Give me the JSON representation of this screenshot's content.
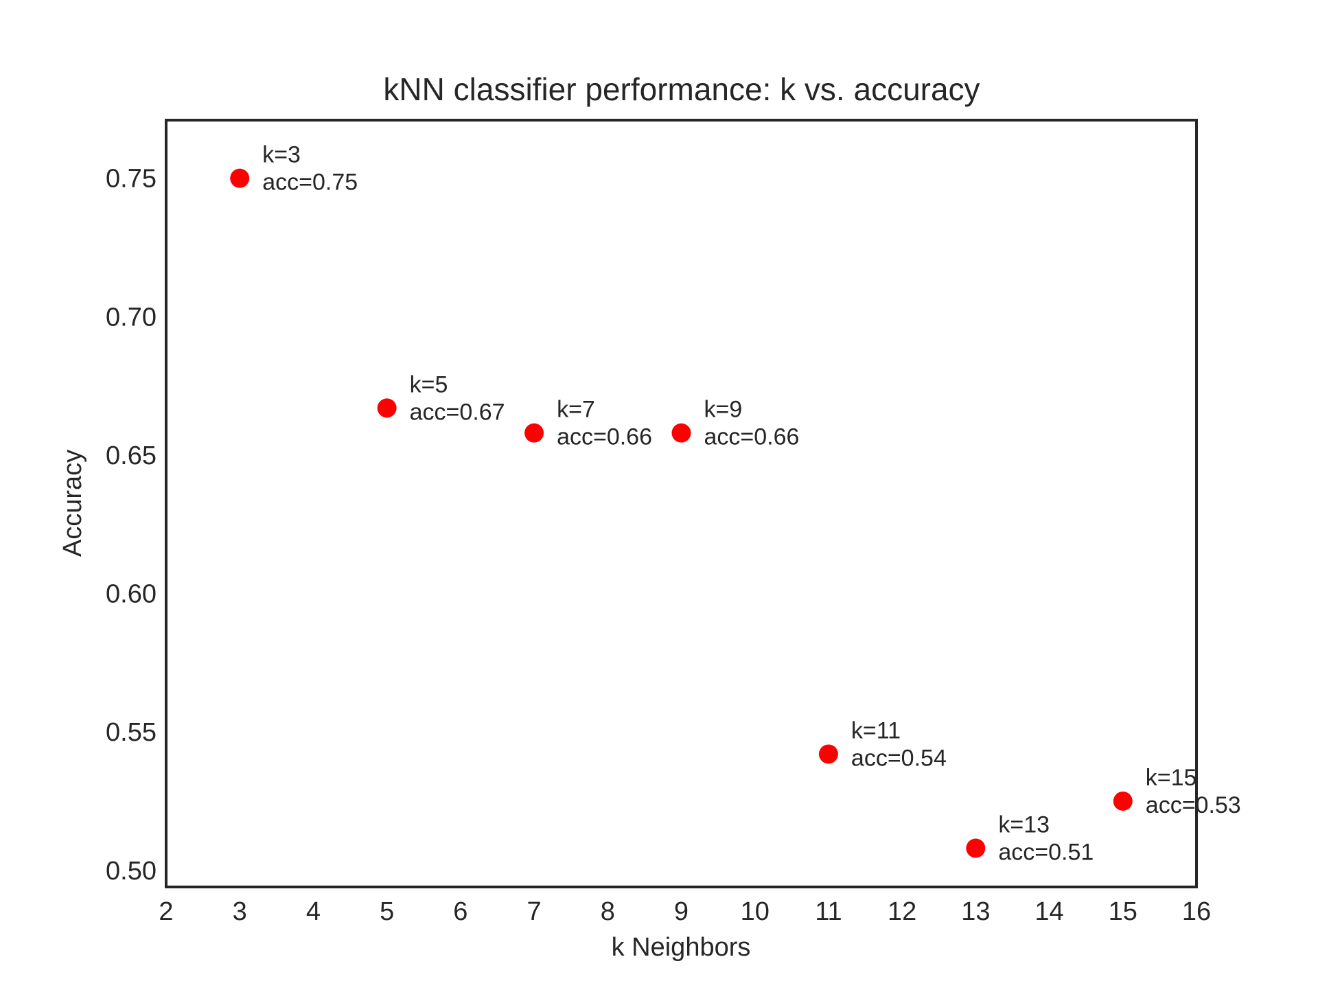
{
  "chart_data": {
    "type": "scatter",
    "title": "kNN classifier performance: k vs. accuracy",
    "xlabel": "k Neighbors",
    "ylabel": "Accuracy",
    "xlim": [
      2,
      16
    ],
    "ylim": [
      0.494,
      0.771
    ],
    "grid": false,
    "legend": "none",
    "xticks": [
      2,
      3,
      4,
      5,
      6,
      7,
      8,
      9,
      10,
      11,
      12,
      13,
      14,
      15,
      16
    ],
    "yticks": [
      0.5,
      0.55,
      0.6,
      0.65,
      0.7,
      0.75
    ],
    "ytick_labels": [
      "0.50",
      "0.55",
      "0.60",
      "0.65",
      "0.70",
      "0.75"
    ],
    "marker_color": "#ff0000",
    "points": [
      {
        "x": 3,
        "y": 0.75,
        "label_k": "k=3",
        "label_acc": "acc=0.75"
      },
      {
        "x": 5,
        "y": 0.667,
        "label_k": "k=5",
        "label_acc": "acc=0.67"
      },
      {
        "x": 7,
        "y": 0.658,
        "label_k": "k=7",
        "label_acc": "acc=0.66"
      },
      {
        "x": 9,
        "y": 0.658,
        "label_k": "k=9",
        "label_acc": "acc=0.66"
      },
      {
        "x": 11,
        "y": 0.542,
        "label_k": "k=11",
        "label_acc": "acc=0.54"
      },
      {
        "x": 13,
        "y": 0.508,
        "label_k": "k=13",
        "label_acc": "acc=0.51"
      },
      {
        "x": 15,
        "y": 0.525,
        "label_k": "k=15",
        "label_acc": "acc=0.53"
      }
    ]
  }
}
